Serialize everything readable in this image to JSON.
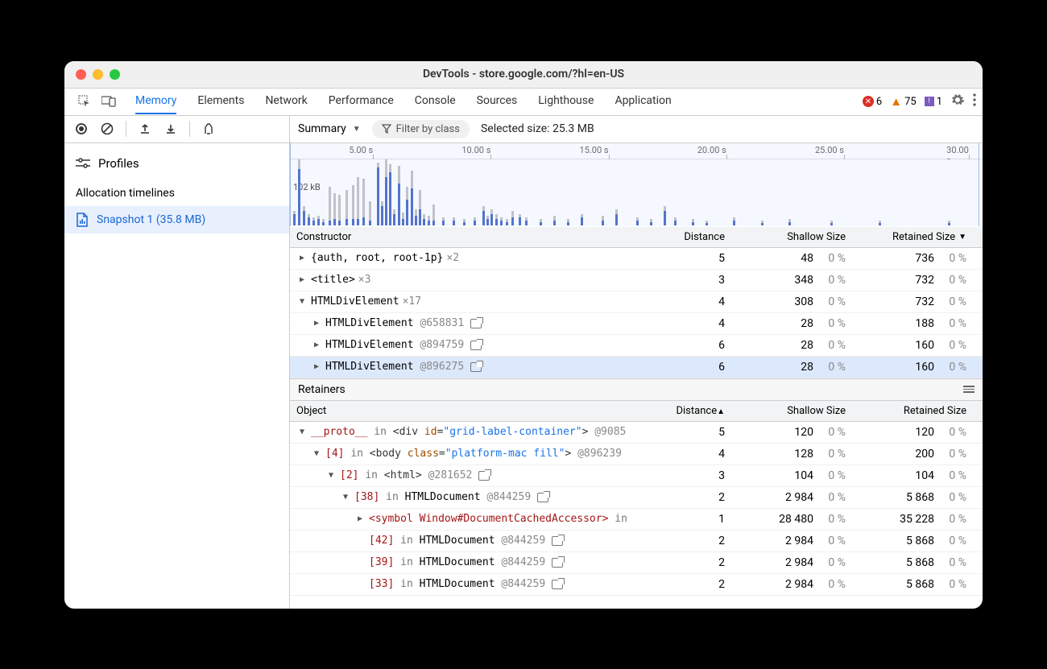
{
  "window": {
    "title": "DevTools - store.google.com/?hl=en-US",
    "traffic_colors": {
      "close": "#ff5f57",
      "min": "#febc2e",
      "max": "#28c840"
    }
  },
  "tabs": {
    "items": [
      "Memory",
      "Elements",
      "Network",
      "Performance",
      "Console",
      "Sources",
      "Lighthouse",
      "Application"
    ],
    "active": "Memory"
  },
  "status": {
    "errors": 6,
    "warnings": 75,
    "issues": 1
  },
  "toolbar": {
    "view_dropdown": "Summary",
    "filter_placeholder": "Filter by class",
    "selected_size_label": "Selected size: 25.3 MB"
  },
  "sidebar": {
    "profiles_label": "Profiles",
    "timelines_label": "Allocation timelines",
    "snapshot_label": "Snapshot 1 (35.8 MB)"
  },
  "timeline": {
    "y_label": "102 kB",
    "ticks": [
      {
        "label": "5.00 s",
        "pct": 12
      },
      {
        "label": "10.00 s",
        "pct": 29
      },
      {
        "label": "15.00 s",
        "pct": 46
      },
      {
        "label": "20.00 s",
        "pct": 63
      },
      {
        "label": "25.00 s",
        "pct": 80
      },
      {
        "label": "30.00 s",
        "pct": 98
      }
    ],
    "bars": [
      {
        "x": 0.5,
        "g": 18,
        "b": 14
      },
      {
        "x": 1.2,
        "g": 82,
        "b": 70
      },
      {
        "x": 1.9,
        "g": 24,
        "b": 18
      },
      {
        "x": 2.6,
        "g": 14,
        "b": 10
      },
      {
        "x": 3.3,
        "g": 10,
        "b": 6
      },
      {
        "x": 4.0,
        "g": 12,
        "b": 8
      },
      {
        "x": 4.7,
        "g": 8,
        "b": 4
      },
      {
        "x": 5.6,
        "g": 48,
        "b": 6
      },
      {
        "x": 6.3,
        "g": 40,
        "b": 8
      },
      {
        "x": 7.0,
        "g": 38,
        "b": 6
      },
      {
        "x": 8.0,
        "g": 44,
        "b": 8
      },
      {
        "x": 9.0,
        "g": 50,
        "b": 8
      },
      {
        "x": 9.7,
        "g": 60,
        "b": 8
      },
      {
        "x": 10.5,
        "g": 58,
        "b": 10
      },
      {
        "x": 11.4,
        "g": 30,
        "b": 6
      },
      {
        "x": 12.5,
        "g": 78,
        "b": 72
      },
      {
        "x": 13.1,
        "g": 30,
        "b": 24
      },
      {
        "x": 13.7,
        "g": 82,
        "b": 60
      },
      {
        "x": 14.3,
        "g": 76,
        "b": 66
      },
      {
        "x": 14.9,
        "g": 20,
        "b": 14
      },
      {
        "x": 15.6,
        "g": 74,
        "b": 52
      },
      {
        "x": 16.2,
        "g": 16,
        "b": 8
      },
      {
        "x": 16.8,
        "g": 48,
        "b": 32
      },
      {
        "x": 17.4,
        "g": 68,
        "b": 46
      },
      {
        "x": 18.0,
        "g": 20,
        "b": 12
      },
      {
        "x": 18.6,
        "g": 44,
        "b": 20
      },
      {
        "x": 19.2,
        "g": 14,
        "b": 8
      },
      {
        "x": 19.9,
        "g": 12,
        "b": 6
      },
      {
        "x": 20.6,
        "g": 26,
        "b": 6
      },
      {
        "x": 22.0,
        "g": 10,
        "b": 6
      },
      {
        "x": 23.5,
        "g": 10,
        "b": 6
      },
      {
        "x": 25.0,
        "g": 8,
        "b": 4
      },
      {
        "x": 26.5,
        "g": 10,
        "b": 6
      },
      {
        "x": 27.8,
        "g": 24,
        "b": 18
      },
      {
        "x": 28.4,
        "g": 12,
        "b": 8
      },
      {
        "x": 29.0,
        "g": 20,
        "b": 14
      },
      {
        "x": 29.6,
        "g": 14,
        "b": 8
      },
      {
        "x": 30.4,
        "g": 10,
        "b": 6
      },
      {
        "x": 31.2,
        "g": 8,
        "b": 4
      },
      {
        "x": 32.0,
        "g": 18,
        "b": 10
      },
      {
        "x": 33.0,
        "g": 14,
        "b": 10
      },
      {
        "x": 34.0,
        "g": 10,
        "b": 6
      },
      {
        "x": 36.0,
        "g": 8,
        "b": 4
      },
      {
        "x": 38.0,
        "g": 12,
        "b": 6
      },
      {
        "x": 40.0,
        "g": 8,
        "b": 4
      },
      {
        "x": 42.0,
        "g": 14,
        "b": 10
      },
      {
        "x": 45.0,
        "g": 12,
        "b": 6
      },
      {
        "x": 47.0,
        "g": 20,
        "b": 14
      },
      {
        "x": 50.0,
        "g": 10,
        "b": 6
      },
      {
        "x": 52.0,
        "g": 8,
        "b": 4
      },
      {
        "x": 54.0,
        "g": 24,
        "b": 18
      },
      {
        "x": 55.5,
        "g": 10,
        "b": 6
      },
      {
        "x": 58.0,
        "g": 8,
        "b": 4
      },
      {
        "x": 60.0,
        "g": 6,
        "b": 3
      },
      {
        "x": 64.0,
        "g": 10,
        "b": 6
      },
      {
        "x": 68.0,
        "g": 6,
        "b": 3
      },
      {
        "x": 72.0,
        "g": 8,
        "b": 4
      },
      {
        "x": 78.0,
        "g": 6,
        "b": 3
      },
      {
        "x": 85.0,
        "g": 6,
        "b": 3
      },
      {
        "x": 95.0,
        "g": 6,
        "b": 3
      }
    ],
    "selection": {
      "from": 0,
      "to": 99.5
    },
    "colors": {
      "bar_gray": "#bdbdbd",
      "bar_blue": "#3b5cc4",
      "selection": "rgba(200,220,255,0.18)"
    }
  },
  "constructor_table": {
    "headers": {
      "c": "Constructor",
      "d": "Distance",
      "s": "Shallow Size",
      "r": "Retained Size"
    },
    "rows": [
      {
        "indent": 0,
        "expand": "▶",
        "label": "{auth, root, root-1p}",
        "suffix": "×2",
        "dist": "5",
        "sh": "48",
        "shp": "0 %",
        "re": "736",
        "rep": "0 %"
      },
      {
        "indent": 0,
        "expand": "▶",
        "label": "<title>",
        "suffix": "×3",
        "dist": "3",
        "sh": "348",
        "shp": "0 %",
        "re": "732",
        "rep": "0 %"
      },
      {
        "indent": 0,
        "expand": "▼",
        "label": "HTMLDivElement",
        "suffix": "×17",
        "dist": "4",
        "sh": "308",
        "shp": "0 %",
        "re": "732",
        "rep": "0 %"
      },
      {
        "indent": 1,
        "expand": "▶",
        "label": "HTMLDivElement",
        "atid": "@658831",
        "popout": true,
        "dist": "4",
        "sh": "28",
        "shp": "0 %",
        "re": "188",
        "rep": "0 %"
      },
      {
        "indent": 1,
        "expand": "▶",
        "label": "HTMLDivElement",
        "atid": "@894759",
        "popout": true,
        "dist": "6",
        "sh": "28",
        "shp": "0 %",
        "re": "160",
        "rep": "0 %"
      },
      {
        "indent": 1,
        "expand": "▶",
        "label": "HTMLDivElement",
        "atid": "@896275",
        "popout": true,
        "dist": "6",
        "sh": "28",
        "shp": "0 %",
        "re": "160",
        "rep": "0 %",
        "selected": true
      }
    ]
  },
  "retainers": {
    "title": "Retainers",
    "headers": {
      "c": "Object",
      "d": "Distance",
      "s": "Shallow Size",
      "r": "Retained Size"
    },
    "rows": [
      {
        "indent": 0,
        "expand": "▼",
        "html": "<span class='prop'>__proto__</span> <span class='inkw'>in</span> <span class='tag'>&lt;div <span class='attrname'>id</span>=<span class='attrval'>\"grid-label-container\"</span>&gt;</span> <span class='atid'>@9085</span>",
        "dist": "5",
        "sh": "120",
        "shp": "0 %",
        "re": "120",
        "rep": "0 %"
      },
      {
        "indent": 1,
        "expand": "▼",
        "html": "<span class='idx'>[4]</span> <span class='inkw'>in</span> <span class='tag'>&lt;body <span class='attrname'>class</span>=<span class='attrval'>\"platform-mac fill\"</span>&gt;</span> <span class='atid'>@896239</span>",
        "dist": "4",
        "sh": "128",
        "shp": "0 %",
        "re": "200",
        "rep": "0 %"
      },
      {
        "indent": 2,
        "expand": "▼",
        "html": "<span class='idx'>[2]</span> <span class='inkw'>in</span> <span class='tag'>&lt;html&gt;</span> <span class='atid'>@281652</span>",
        "popout": true,
        "dist": "3",
        "sh": "104",
        "shp": "0 %",
        "re": "104",
        "rep": "0 %"
      },
      {
        "indent": 3,
        "expand": "▼",
        "html": "<span class='idx'>[38]</span> <span class='inkw'>in</span> HTMLDocument <span class='atid'>@844259</span>",
        "popout": true,
        "dist": "2",
        "sh": "2 984",
        "shp": "0 %",
        "re": "5 868",
        "rep": "0 %"
      },
      {
        "indent": 4,
        "expand": "▶",
        "html": "<span class='sym'>&lt;symbol Window#DocumentCachedAccessor&gt;</span> <span class='inkw'>in</span>",
        "dist": "1",
        "sh": "28 480",
        "shp": "0 %",
        "re": "35 228",
        "rep": "0 %"
      },
      {
        "indent": 4,
        "expand": "",
        "html": "<span class='idx'>[42]</span> <span class='inkw'>in</span> HTMLDocument <span class='atid'>@844259</span>",
        "popout": true,
        "dist": "2",
        "sh": "2 984",
        "shp": "0 %",
        "re": "5 868",
        "rep": "0 %"
      },
      {
        "indent": 4,
        "expand": "",
        "html": "<span class='idx'>[39]</span> <span class='inkw'>in</span> HTMLDocument <span class='atid'>@844259</span>",
        "popout": true,
        "dist": "2",
        "sh": "2 984",
        "shp": "0 %",
        "re": "5 868",
        "rep": "0 %"
      },
      {
        "indent": 4,
        "expand": "",
        "html": "<span class='idx'>[33]</span> <span class='inkw'>in</span> HTMLDocument <span class='atid'>@844259</span>",
        "popout": true,
        "dist": "2",
        "sh": "2 984",
        "shp": "0 %",
        "re": "5 868",
        "rep": "0 %"
      }
    ]
  }
}
